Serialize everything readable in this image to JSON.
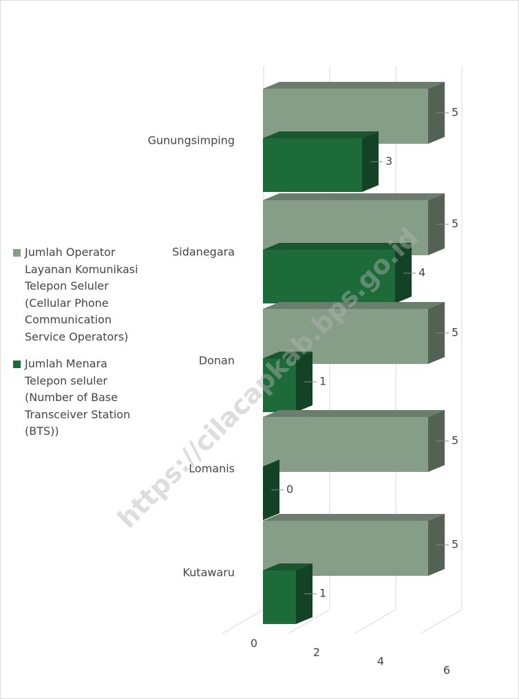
{
  "chart_data": {
    "type": "bar",
    "orientation": "horizontal",
    "watermark": "https://cilacapkab.bps.go.id",
    "categories": [
      "Gunungsimping",
      "Sidanegara",
      "Donan",
      "Lomanis",
      "Kutawaru"
    ],
    "series": [
      {
        "name": "Jumlah Operator Layanan Komunikasi Telepon Seluler (Cellular Phone Communication Service Operators)",
        "color": "#869e88",
        "values": [
          5,
          5,
          5,
          5,
          5
        ]
      },
      {
        "name": "Jumlah Menara Telepon seluler (Number of Base Transceiver Station (BTS))",
        "color": "#1e6b3a",
        "values": [
          3,
          4,
          1,
          0,
          1
        ]
      }
    ],
    "xlim": [
      0,
      6
    ],
    "xticks": [
      0,
      2,
      4,
      6
    ],
    "grid": true,
    "legend": "left"
  }
}
